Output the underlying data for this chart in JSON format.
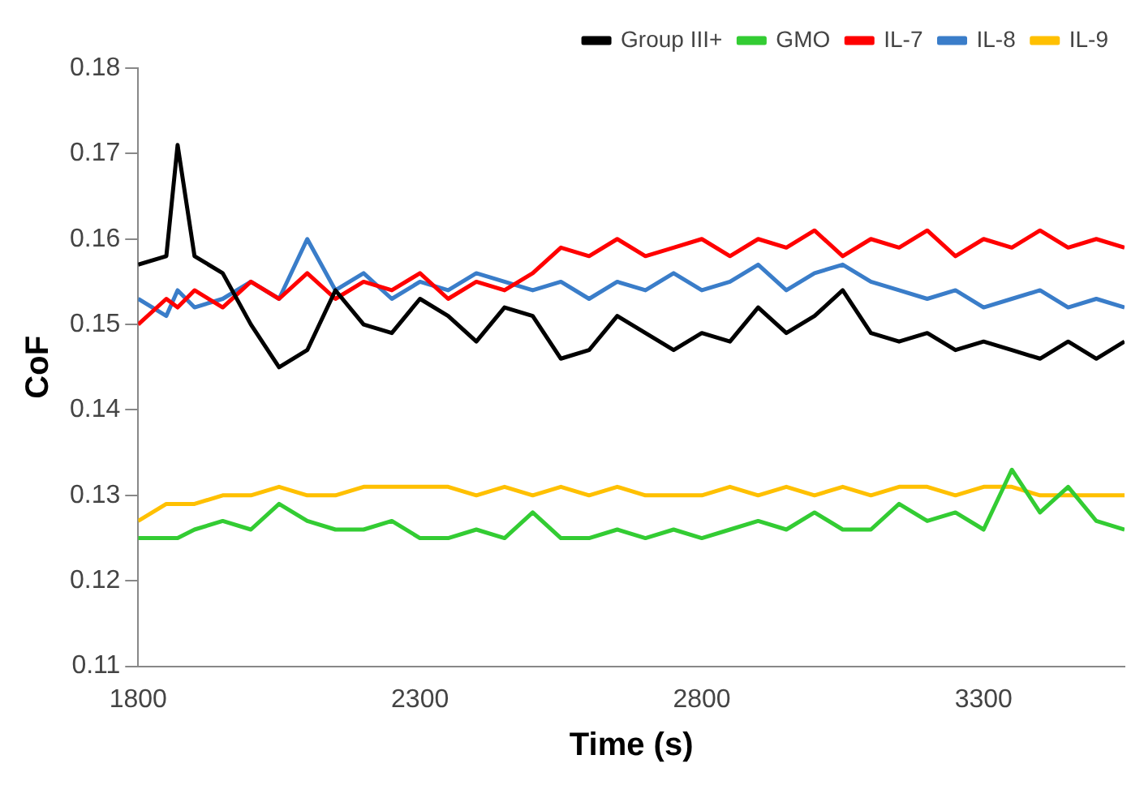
{
  "chart_data": {
    "type": "line",
    "xlabel": "Time (s)",
    "ylabel": "CoF",
    "x": [
      1800,
      1850,
      1870,
      1900,
      1950,
      2000,
      2050,
      2100,
      2150,
      2200,
      2250,
      2300,
      2350,
      2400,
      2450,
      2500,
      2550,
      2600,
      2650,
      2700,
      2750,
      2800,
      2850,
      2900,
      2950,
      3000,
      3050,
      3100,
      3150,
      3200,
      3250,
      3300,
      3350,
      3400,
      3450,
      3500,
      3550
    ],
    "series": [
      {
        "name": "Group III+",
        "color": "#000000",
        "values": [
          0.157,
          0.158,
          0.171,
          0.158,
          0.156,
          0.15,
          0.145,
          0.147,
          0.154,
          0.15,
          0.149,
          0.153,
          0.151,
          0.148,
          0.152,
          0.151,
          0.146,
          0.147,
          0.151,
          0.149,
          0.147,
          0.149,
          0.148,
          0.152,
          0.149,
          0.151,
          0.154,
          0.149,
          0.148,
          0.149,
          0.147,
          0.148,
          0.147,
          0.146,
          0.148,
          0.146,
          0.148
        ]
      },
      {
        "name": "GMO",
        "color": "#33cc33",
        "values": [
          0.125,
          0.125,
          0.125,
          0.126,
          0.127,
          0.126,
          0.129,
          0.127,
          0.126,
          0.126,
          0.127,
          0.125,
          0.125,
          0.126,
          0.125,
          0.128,
          0.125,
          0.125,
          0.126,
          0.125,
          0.126,
          0.125,
          0.126,
          0.127,
          0.126,
          0.128,
          0.126,
          0.126,
          0.129,
          0.127,
          0.128,
          0.126,
          0.133,
          0.128,
          0.131,
          0.127,
          0.126
        ]
      },
      {
        "name": "IL-7",
        "color": "#ff0000",
        "values": [
          0.15,
          0.153,
          0.152,
          0.154,
          0.152,
          0.155,
          0.153,
          0.156,
          0.153,
          0.155,
          0.154,
          0.156,
          0.153,
          0.155,
          0.154,
          0.156,
          0.159,
          0.158,
          0.16,
          0.158,
          0.159,
          0.16,
          0.158,
          0.16,
          0.159,
          0.161,
          0.158,
          0.16,
          0.159,
          0.161,
          0.158,
          0.16,
          0.159,
          0.161,
          0.159,
          0.16,
          0.159
        ]
      },
      {
        "name": "IL-8",
        "color": "#3a7dc9",
        "values": [
          0.153,
          0.151,
          0.154,
          0.152,
          0.153,
          0.155,
          0.153,
          0.16,
          0.154,
          0.156,
          0.153,
          0.155,
          0.154,
          0.156,
          0.155,
          0.154,
          0.155,
          0.153,
          0.155,
          0.154,
          0.156,
          0.154,
          0.155,
          0.157,
          0.154,
          0.156,
          0.157,
          0.155,
          0.154,
          0.153,
          0.154,
          0.152,
          0.153,
          0.154,
          0.152,
          0.153,
          0.152
        ]
      },
      {
        "name": "IL-9",
        "color": "#ffc000",
        "values": [
          0.127,
          0.129,
          0.129,
          0.129,
          0.13,
          0.13,
          0.131,
          0.13,
          0.13,
          0.131,
          0.131,
          0.131,
          0.131,
          0.13,
          0.131,
          0.13,
          0.131,
          0.13,
          0.131,
          0.13,
          0.13,
          0.13,
          0.131,
          0.13,
          0.131,
          0.13,
          0.131,
          0.13,
          0.131,
          0.131,
          0.13,
          0.131,
          0.131,
          0.13,
          0.13,
          0.13,
          0.13
        ]
      }
    ],
    "xlim": [
      1800,
      3550
    ],
    "xticks": [
      1800,
      2300,
      2800,
      3300
    ],
    "ylim": [
      0.11,
      0.18
    ],
    "yticks": [
      0.11,
      0.12,
      0.13,
      0.14,
      0.15,
      0.16,
      0.17,
      0.18
    ],
    "grid": false,
    "legend": "top right",
    "marker": "none",
    "line_style": "solid"
  }
}
